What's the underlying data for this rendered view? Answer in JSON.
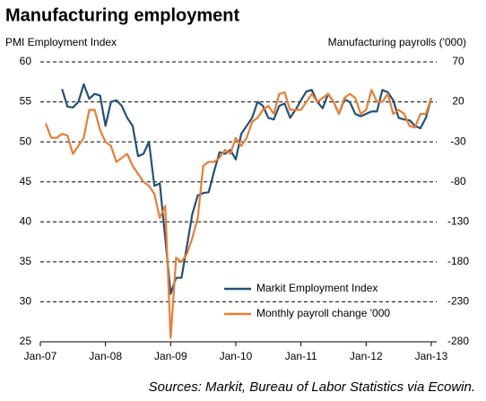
{
  "chart_data": {
    "type": "line",
    "title": "Manufacturing employment",
    "y_label": "PMI Employment Index",
    "y2_label": "Manufacturing payrolls ('000)",
    "source": "Sources: Markit, Bureau of Labor Statistics via Ecowin.",
    "x": [
      1,
      2,
      3,
      4,
      5,
      6,
      7,
      8,
      9,
      10,
      11,
      12,
      13,
      14,
      15,
      16,
      17,
      18,
      19,
      20,
      21,
      22,
      23,
      24,
      25,
      26,
      27,
      28,
      29,
      30,
      31,
      32,
      33,
      34,
      35,
      36,
      37,
      38,
      39,
      40,
      41,
      42,
      43,
      44,
      45,
      46,
      47,
      48,
      49,
      50,
      51,
      52,
      53,
      54,
      55,
      56,
      57,
      58,
      59,
      60,
      61,
      62,
      63,
      64,
      65,
      66,
      67,
      68,
      69,
      70,
      71,
      72
    ],
    "xlim": [
      0,
      73
    ],
    "xticks": [
      {
        "value": 0,
        "label": "Jan-07"
      },
      {
        "value": 12,
        "label": "Jan-08"
      },
      {
        "value": 24,
        "label": "Jan-09"
      },
      {
        "value": 36,
        "label": "Jan-10"
      },
      {
        "value": 48,
        "label": "Jan-11"
      },
      {
        "value": 60,
        "label": "Jan-12"
      },
      {
        "value": 72,
        "label": "Jan-13"
      }
    ],
    "ylim": [
      25,
      60
    ],
    "yticks": [
      25,
      30,
      35,
      40,
      45,
      50,
      55,
      60
    ],
    "y2lim": [
      -280,
      70
    ],
    "y2ticks": [
      -280,
      -230,
      -180,
      -130,
      -80,
      -30,
      20,
      70
    ],
    "grid": true,
    "legend": "lower right",
    "series": [
      {
        "name": "Markit Employment Index",
        "color": "#245176",
        "axis": "y",
        "values": [
          null,
          null,
          null,
          56.6,
          54.4,
          54.3,
          55.0,
          57.2,
          55.4,
          56.0,
          55.8,
          52.0,
          55.0,
          55.2,
          54.5,
          53.0,
          52.0,
          48.2,
          48.5,
          50.0,
          44.5,
          44.8,
          38.0,
          31.0,
          33.0,
          33.0,
          37.0,
          41.0,
          43.3,
          43.6,
          43.7,
          46.3,
          48.7,
          48.5,
          49.0,
          47.8,
          51.0,
          52.0,
          53.0,
          55.0,
          54.5,
          53.0,
          52.8,
          54.5,
          54.8,
          53.0,
          54.0,
          55.2,
          56.3,
          56.5,
          55.0,
          54.2,
          56.0,
          55.0,
          53.5,
          55.3,
          55.0,
          53.5,
          53.2,
          53.5,
          53.8,
          53.8,
          56.5,
          56.2,
          55.2,
          53.0,
          52.8,
          52.7,
          52.0,
          51.7,
          53.0,
          55.5
        ]
      },
      {
        "name": "Monthly payroll change '000",
        "color": "#ed7d31",
        "axis": "y2",
        "values": [
          -7,
          -25,
          -25,
          -20,
          -22,
          -45,
          -35,
          -25,
          10,
          10,
          -15,
          -30,
          -35,
          -55,
          -50,
          -45,
          -60,
          -70,
          -80,
          -85,
          -95,
          -125,
          -110,
          -275,
          -175,
          -180,
          -170,
          -150,
          -125,
          -60,
          -55,
          -55,
          -50,
          -40,
          -45,
          -25,
          -35,
          -25,
          -5,
          0,
          10,
          15,
          5,
          30,
          32,
          10,
          10,
          10,
          20,
          30,
          20,
          25,
          30,
          20,
          5,
          25,
          30,
          25,
          5,
          10,
          35,
          20,
          20,
          30,
          5,
          10,
          5,
          -10,
          -12,
          5,
          5,
          25
        ]
      }
    ]
  }
}
